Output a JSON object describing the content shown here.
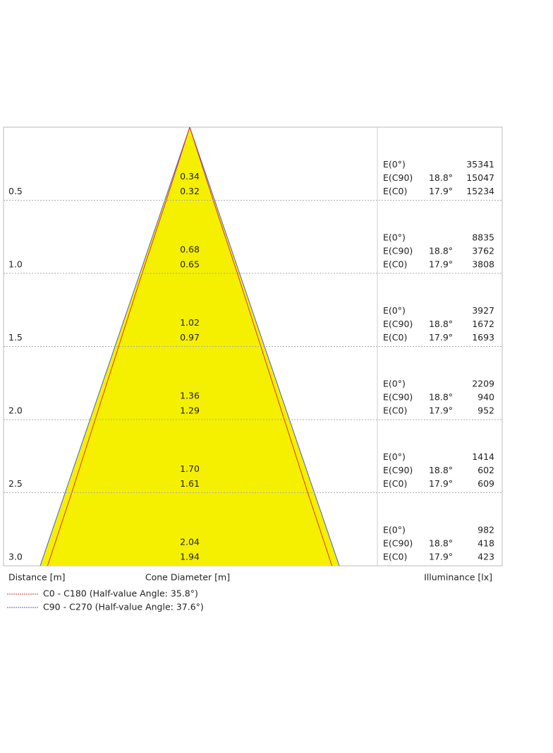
{
  "chart_data": {
    "type": "cone",
    "x_label": "Distance [m]",
    "diameter_label": "Cone Diameter [m]",
    "illuminance_label": "Illuminance [lx]",
    "ylim": [
      0,
      3
    ],
    "yticks": [
      0.5,
      {
        "value": 1,
        "label": "1.0"
      },
      1.5,
      {
        "value": 2,
        "label": "2.0"
      },
      2.5,
      {
        "value": 3,
        "label": "3.0"
      }
    ],
    "series": [
      {
        "name": "C90 - C270 (Half-value Angle: 37.6°)",
        "color": "#4a5bd6",
        "values": [
          0.34,
          0.68,
          1.02,
          1.36,
          1.7,
          2.04
        ],
        "value_labels": [
          "0.34",
          "0.68",
          "1.02",
          "1.36",
          "1.70",
          "2.04"
        ]
      },
      {
        "name": "C0 - C180 (Half-value Angle: 35.8°)",
        "color": "#e0302a",
        "values": [
          0.32,
          0.65,
          0.97,
          1.29,
          1.61,
          1.94
        ]
      }
    ],
    "legend_order": [
      1,
      0
    ],
    "fill": "#f4f000",
    "illuminance": [
      {
        "label": "E(0°)",
        "values": [
          35341,
          8835,
          3927,
          2209,
          1414,
          982
        ]
      },
      {
        "label": "E(C90)",
        "angle": "18.8°",
        "values": [
          15047,
          3762,
          1672,
          940,
          602,
          418
        ]
      },
      {
        "label": "E(C0)",
        "angle": "17.9°",
        "values": [
          15234,
          3808,
          1693,
          952,
          609,
          423
        ]
      }
    ]
  }
}
